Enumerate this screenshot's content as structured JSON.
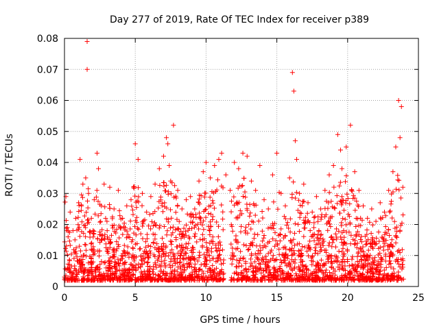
{
  "chart_data": {
    "type": "scatter",
    "title": "Day 277 of 2019, Rate Of TEC Index for receiver p389",
    "xlabel": "GPS time / hours",
    "ylabel": "ROTI / TECUs",
    "xlim": [
      0,
      25
    ],
    "ylim": [
      0,
      0.08
    ],
    "xticks": [
      0,
      5,
      10,
      15,
      20,
      25
    ],
    "xtick_labels": [
      "0",
      "5",
      "10",
      "15",
      "20",
      "25"
    ],
    "yticks": [
      0,
      0.01,
      0.02,
      0.03,
      0.04,
      0.05,
      0.06,
      0.07,
      0.08
    ],
    "ytick_labels": [
      "0",
      "0.01",
      "0.02",
      "0.03",
      "0.04",
      "0.05",
      "0.06",
      "0.07",
      "0.08"
    ],
    "grid": true,
    "marker": "+",
    "series": [
      {
        "name": "ROTI",
        "color": "#ff0000",
        "x": [
          0.1,
          0.2,
          0.4,
          0.6,
          0.8,
          1.0,
          1.1,
          1.3,
          1.5,
          1.6,
          1.6,
          1.7,
          1.9,
          2.1,
          2.3,
          2.4,
          2.6,
          2.8,
          3.0,
          3.2,
          3.5,
          3.8,
          4.1,
          4.4,
          4.7,
          5.0,
          5.2,
          5.5,
          5.8,
          6.1,
          6.4,
          6.7,
          7.0,
          7.2,
          7.3,
          7.4,
          7.5,
          7.7,
          8.0,
          8.3,
          8.6,
          8.9,
          9.2,
          9.5,
          9.8,
          10.0,
          10.3,
          10.6,
          10.9,
          11.1,
          11.4,
          11.7,
          12.0,
          12.3,
          12.6,
          12.9,
          13.2,
          13.5,
          13.8,
          14.1,
          14.4,
          14.7,
          15.0,
          15.3,
          15.6,
          15.9,
          16.1,
          16.2,
          16.3,
          16.4,
          16.6,
          16.9,
          17.2,
          17.5,
          17.8,
          18.1,
          18.4,
          18.7,
          19.0,
          19.3,
          19.5,
          19.6,
          19.9,
          20.2,
          20.5,
          20.8,
          21.1,
          21.4,
          21.7,
          22.0,
          22.3,
          22.6,
          22.9,
          23.2,
          23.4,
          23.6,
          23.7,
          23.8,
          23.9
        ],
        "y": [
          0.029,
          0.019,
          0.024,
          0.018,
          0.022,
          0.027,
          0.041,
          0.033,
          0.035,
          0.079,
          0.07,
          0.03,
          0.022,
          0.028,
          0.043,
          0.038,
          0.026,
          0.033,
          0.021,
          0.032,
          0.025,
          0.031,
          0.022,
          0.026,
          0.028,
          0.046,
          0.041,
          0.03,
          0.024,
          0.029,
          0.033,
          0.038,
          0.042,
          0.048,
          0.046,
          0.039,
          0.034,
          0.052,
          0.031,
          0.025,
          0.028,
          0.029,
          0.025,
          0.034,
          0.037,
          0.04,
          0.035,
          0.039,
          0.041,
          0.043,
          0.036,
          0.031,
          0.04,
          0.038,
          0.043,
          0.042,
          0.034,
          0.031,
          0.039,
          0.028,
          0.025,
          0.036,
          0.043,
          0.03,
          0.026,
          0.035,
          0.069,
          0.063,
          0.047,
          0.041,
          0.03,
          0.033,
          0.027,
          0.024,
          0.029,
          0.025,
          0.031,
          0.036,
          0.039,
          0.049,
          0.044,
          0.038,
          0.045,
          0.052,
          0.037,
          0.031,
          0.026,
          0.022,
          0.025,
          0.021,
          0.027,
          0.024,
          0.031,
          0.037,
          0.045,
          0.06,
          0.048,
          0.058,
          0.032
        ]
      }
    ]
  }
}
